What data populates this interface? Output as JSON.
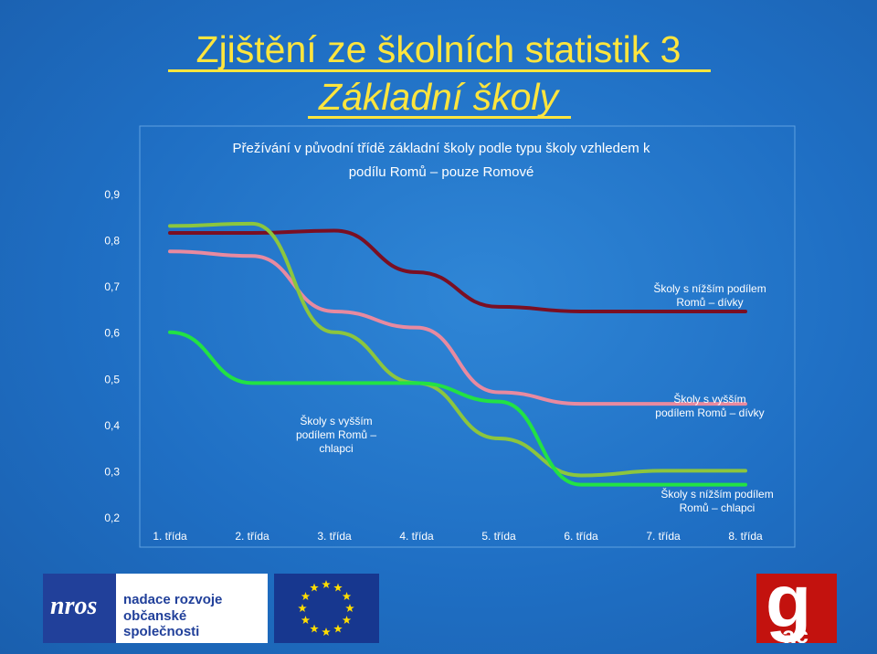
{
  "slide": {
    "title_line1": "Zjištění ze školních statistik 3",
    "title_line2": "Základní školy"
  },
  "chart_data": {
    "type": "line",
    "title": "Přežívání v původní třídě základní školy podle typu školy vzhledem k podílu Romů – pouze Romové",
    "title_lines": [
      "Přežívání v původní třídě základní školy podle typu školy vzhledem k",
      "podílu Romů – pouze Romové"
    ],
    "categories": [
      "1. třída",
      "2. třída",
      "3. třída",
      "4. třída",
      "5. třída",
      "6. třída",
      "7. třída",
      "8. třída"
    ],
    "y_ticks": [
      "0,9",
      "0,8",
      "0,7",
      "0,6",
      "0,5",
      "0,4",
      "0,3",
      "0,2"
    ],
    "ylim": [
      0.2,
      0.9
    ],
    "grid": false,
    "series": [
      {
        "name": "Školy s nížším podílem Romů – dívky",
        "label_lines": [
          "Školy s nížším podílem",
          "Romů – dívky"
        ],
        "color": "#7a0f23",
        "values": [
          0.815,
          0.815,
          0.82,
          0.73,
          0.655,
          0.645,
          0.645,
          0.645
        ]
      },
      {
        "name": "Školy s vyšším podílem Romů – dívky",
        "label_lines": [
          "Školy s vyšším",
          "podílem Romů – dívky"
        ],
        "color": "#e88aa0",
        "values": [
          0.775,
          0.765,
          0.645,
          0.61,
          0.47,
          0.445,
          0.445,
          0.445
        ]
      },
      {
        "name": "Školy s vyšším podílem Romů – chlapci",
        "label_lines": [
          "Školy s vyšším",
          "podílem Romů –",
          "chlapci"
        ],
        "color": "#8cc63e",
        "values": [
          0.83,
          0.835,
          0.6,
          0.49,
          0.37,
          0.29,
          0.3,
          0.3
        ]
      },
      {
        "name": "Školy s nížším podílem Romů – chlapci",
        "label_lines": [
          "Školy s nížším podílem",
          "Romů – chlapci"
        ],
        "color": "#22e244",
        "values": [
          0.6,
          0.49,
          0.49,
          0.49,
          0.45,
          0.27,
          0.27,
          0.27
        ]
      }
    ]
  },
  "logos": {
    "nros_mark": "nros",
    "nros_line1": "nadace rozvoje",
    "nros_line2": "občanské společnosti",
    "gac_letter": "g",
    "gac_sub": "ac"
  },
  "colors": {
    "background": "#1f6fc4",
    "title": "#ffe53d",
    "chart_text": "#ffffff"
  }
}
